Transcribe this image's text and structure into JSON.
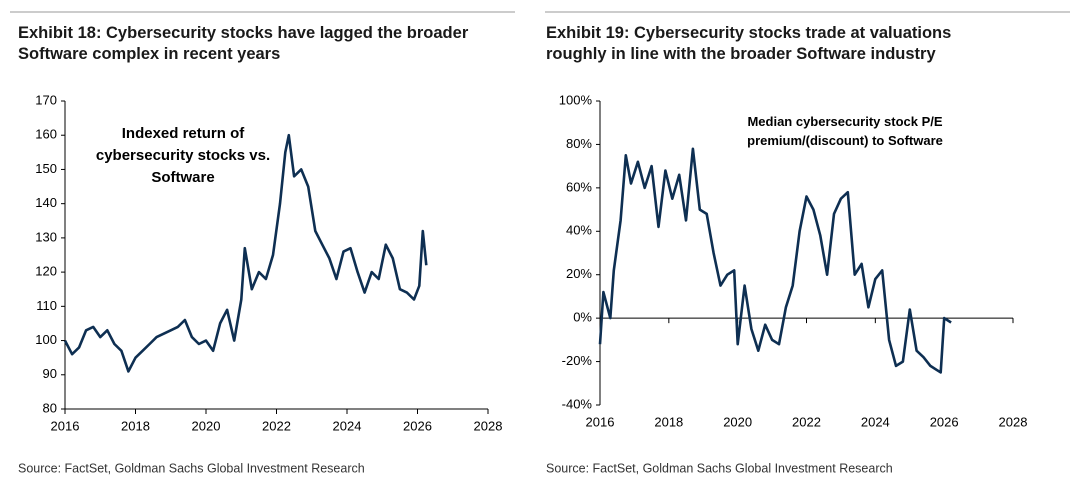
{
  "chart_data": [
    {
      "type": "line",
      "title": "Exhibit 18: Cybersecurity stocks have lagged the broader Software complex in recent years",
      "annotation": "Indexed return of cybersecurity stocks vs. Software",
      "source": "Source: FactSet, Goldman Sachs Global Investment Research",
      "series": [
        {
          "color": "#0e2f52",
          "x": [
            2016.0,
            2016.2,
            2016.4,
            2016.6,
            2016.8,
            2017.0,
            2017.2,
            2017.4,
            2017.6,
            2017.8,
            2018.0,
            2018.2,
            2018.4,
            2018.6,
            2018.8,
            2019.0,
            2019.2,
            2019.4,
            2019.6,
            2019.8,
            2020.0,
            2020.2,
            2020.4,
            2020.6,
            2020.8,
            2021.0,
            2021.1,
            2021.3,
            2021.5,
            2021.7,
            2021.9,
            2022.1,
            2022.25,
            2022.35,
            2022.5,
            2022.7,
            2022.9,
            2023.1,
            2023.3,
            2023.5,
            2023.7,
            2023.9,
            2024.1,
            2024.3,
            2024.5,
            2024.7,
            2024.9,
            2025.1,
            2025.3,
            2025.5,
            2025.7,
            2025.9,
            2026.05,
            2026.15,
            2026.25
          ],
          "values": [
            100,
            96,
            98,
            103,
            104,
            101,
            103,
            99,
            97,
            91,
            95,
            97,
            99,
            101,
            102,
            103,
            104,
            106,
            101,
            99,
            100,
            97,
            105,
            109,
            100,
            112,
            127,
            115,
            120,
            118,
            125,
            140,
            155,
            160,
            148,
            150,
            145,
            132,
            128,
            124,
            118,
            126,
            127,
            120,
            114,
            120,
            118,
            128,
            124,
            115,
            114,
            112,
            116,
            132,
            122
          ]
        }
      ],
      "xlim": [
        2016,
        2028
      ],
      "xticks": [
        2016,
        2018,
        2020,
        2022,
        2024,
        2026,
        2028
      ],
      "ylim": [
        80,
        170
      ],
      "yticks": [
        80,
        90,
        100,
        110,
        120,
        130,
        140,
        150,
        160,
        170
      ]
    },
    {
      "type": "line",
      "title": "Exhibit 19: Cybersecurity stocks trade at valuations roughly in line with the broader Software industry",
      "annotation": "Median cybersecurity stock P/E premium/(discount) to Software",
      "source": "Source: FactSet, Goldman Sachs Global Investment Research",
      "series": [
        {
          "color": "#0e2f52",
          "x": [
            2016.0,
            2016.1,
            2016.3,
            2016.4,
            2016.6,
            2016.75,
            2016.9,
            2017.1,
            2017.3,
            2017.5,
            2017.7,
            2017.9,
            2018.1,
            2018.3,
            2018.5,
            2018.7,
            2018.9,
            2019.1,
            2019.3,
            2019.5,
            2019.7,
            2019.9,
            2020.0,
            2020.2,
            2020.4,
            2020.6,
            2020.8,
            2021.0,
            2021.2,
            2021.4,
            2021.6,
            2021.8,
            2022.0,
            2022.2,
            2022.4,
            2022.6,
            2022.8,
            2023.0,
            2023.2,
            2023.4,
            2023.6,
            2023.8,
            2024.0,
            2024.2,
            2024.4,
            2024.6,
            2024.8,
            2025.0,
            2025.2,
            2025.4,
            2025.6,
            2025.8,
            2025.9,
            2026.0,
            2026.2
          ],
          "values": [
            -12,
            12,
            0,
            22,
            45,
            75,
            62,
            72,
            60,
            70,
            42,
            68,
            55,
            66,
            45,
            78,
            50,
            48,
            30,
            15,
            20,
            22,
            -12,
            15,
            -5,
            -15,
            -3,
            -10,
            -12,
            5,
            15,
            40,
            56,
            50,
            38,
            20,
            48,
            55,
            58,
            20,
            25,
            5,
            18,
            22,
            -10,
            -22,
            -20,
            4,
            -15,
            -18,
            -22,
            -24,
            -25,
            0,
            -2
          ]
        }
      ],
      "xlim": [
        2016,
        2028
      ],
      "xticks": [
        2016,
        2018,
        2020,
        2022,
        2024,
        2026,
        2028
      ],
      "ylim": [
        -40,
        100
      ],
      "yticks": [
        {
          "value": -40,
          "label": "-40%"
        },
        {
          "value": -20,
          "label": "-20%"
        },
        {
          "value": 0,
          "label": "0%"
        },
        {
          "value": 20,
          "label": "20%"
        },
        {
          "value": 40,
          "label": "40%"
        },
        {
          "value": 60,
          "label": "60%"
        },
        {
          "value": 80,
          "label": "80%"
        },
        {
          "value": 100,
          "label": "100%"
        }
      ],
      "zero_line": true
    }
  ]
}
